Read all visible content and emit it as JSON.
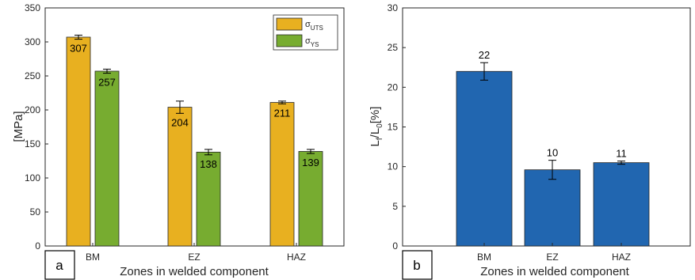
{
  "chart_data": [
    {
      "type": "bar",
      "panel_label": "a",
      "categories": [
        "BM",
        "EZ",
        "HAZ"
      ],
      "series": [
        {
          "name": "σ",
          "name_sub": "UTS",
          "values": [
            307,
            204,
            211
          ],
          "errors": [
            3,
            9,
            2
          ],
          "color": "#E8B020"
        },
        {
          "name": "σ",
          "name_sub": "YS",
          "values": [
            257,
            138,
            139
          ],
          "errors": [
            3,
            4,
            3
          ],
          "color": "#77AC30"
        }
      ],
      "value_labels": [
        "307",
        "257",
        "204",
        "138",
        "211",
        "139"
      ],
      "xlabel": "Zones in welded component",
      "ylabel": "[MPa]",
      "ylim": [
        0,
        350
      ],
      "yticks": [
        0,
        50,
        100,
        150,
        200,
        250,
        300,
        350
      ],
      "legend_position": "top-right",
      "grid": false
    },
    {
      "type": "bar",
      "panel_label": "b",
      "categories": [
        "BM",
        "EZ",
        "HAZ"
      ],
      "series": [
        {
          "values": [
            22,
            9.6,
            10.5
          ],
          "errors": [
            1.1,
            1.2,
            0.2
          ],
          "color": "#2166B0"
        }
      ],
      "value_labels": [
        "22",
        "10",
        "11"
      ],
      "xlabel": "Zones in welded component",
      "ylabel_main": "L",
      "ylabel_sub1": "f",
      "ylabel_mid": "/L",
      "ylabel_sub2": "0",
      "ylabel_tail": "[%]",
      "ylim": [
        0,
        30
      ],
      "yticks": [
        0,
        5,
        10,
        15,
        20,
        25,
        30
      ],
      "grid": false
    }
  ]
}
